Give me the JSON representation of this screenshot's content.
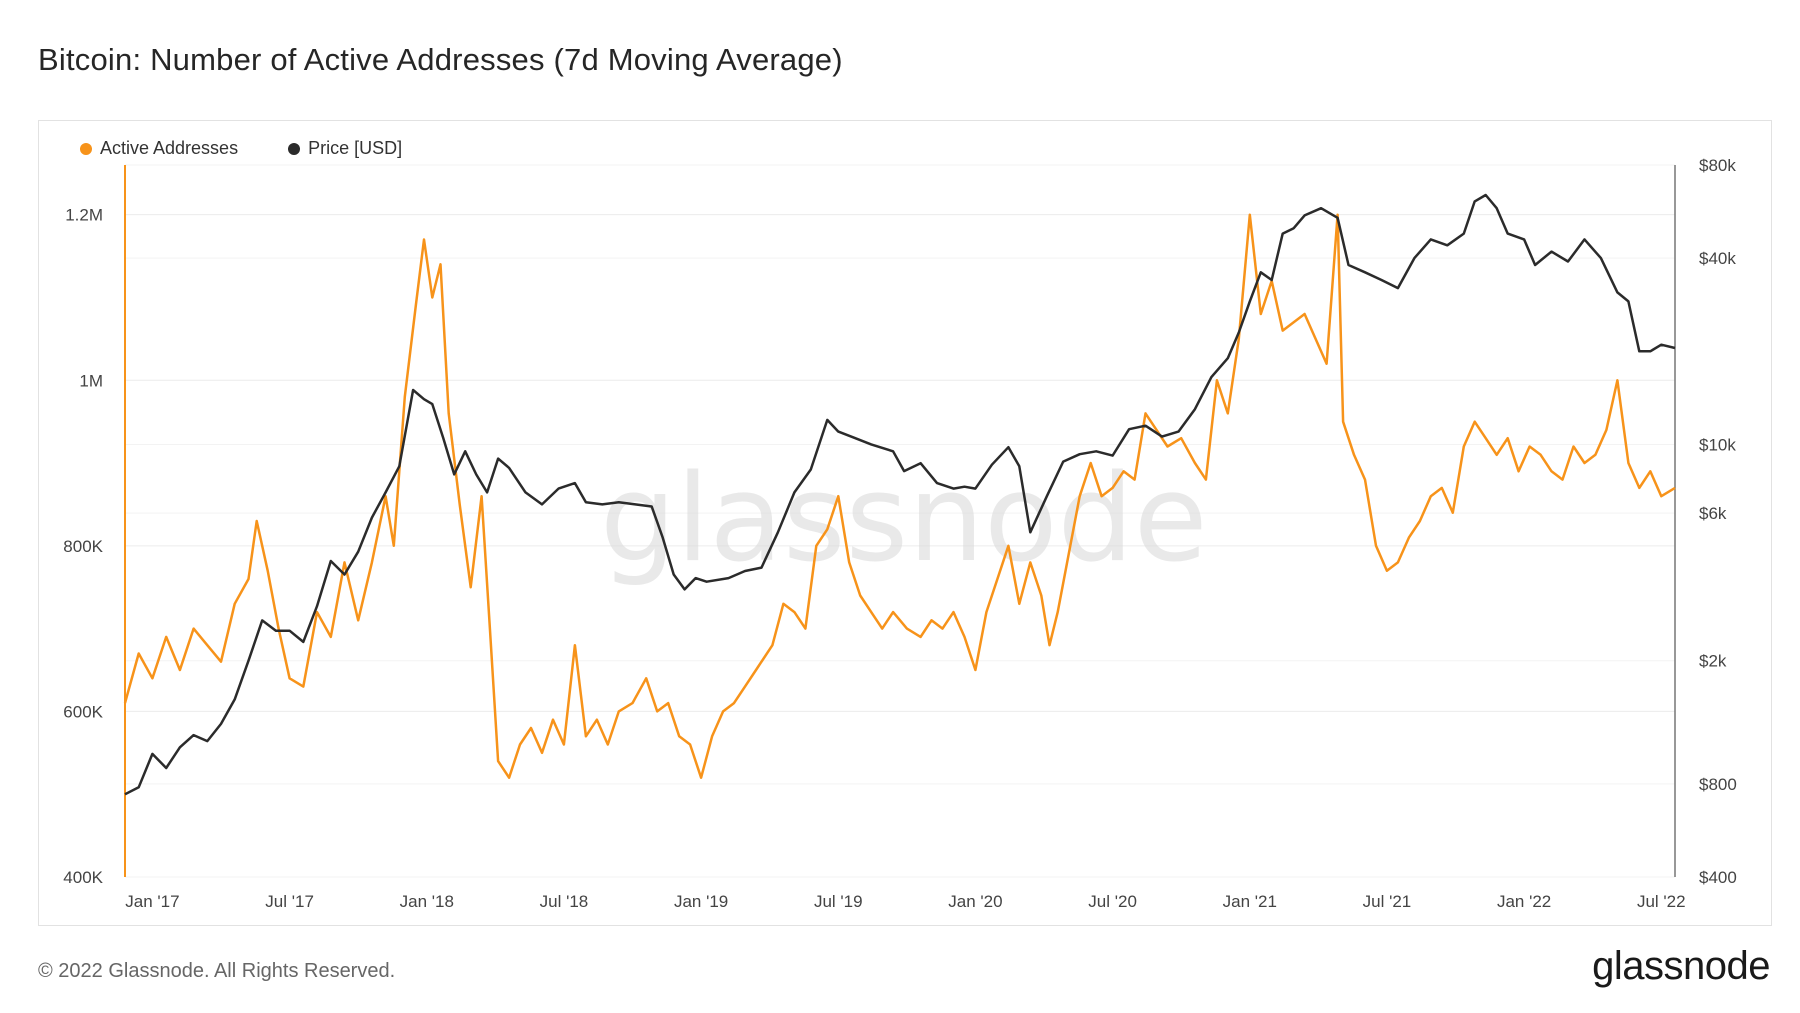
{
  "title": "Bitcoin: Number of Active Addresses (7d Moving Average)",
  "footer": {
    "copyright": "© 2022 Glassnode. All Rights Reserved.",
    "logo": "glassnode"
  },
  "watermark": "glassnode",
  "colors": {
    "active": "#f7931a",
    "price": "#2b2b2b",
    "grid": "#ececec"
  },
  "chart_data": {
    "type": "line",
    "title": "Bitcoin: Number of Active Addresses (7d Moving Average)",
    "x_ticks": [
      "Jan '17",
      "Jul '17",
      "Jan '18",
      "Jul '18",
      "Jan '19",
      "Jul '19",
      "Jan '20",
      "Jul '20",
      "Jan '21",
      "Jul '21",
      "Jan '22",
      "Jul '22"
    ],
    "y_left": {
      "label": "Active Addresses",
      "ticks": [
        "400K",
        "600K",
        "800K",
        "1M",
        "1.2M"
      ],
      "tick_values": [
        400000,
        600000,
        800000,
        1000000,
        1200000
      ],
      "range": [
        400000,
        1260000
      ]
    },
    "y_right": {
      "label": "Price [USD]",
      "scale": "log",
      "ticks": [
        "$400",
        "$800",
        "$2k",
        "$6k",
        "$10k",
        "$40k",
        "$80k"
      ],
      "tick_values": [
        400,
        800,
        2000,
        6000,
        10000,
        40000,
        80000
      ],
      "range": [
        400,
        80000
      ]
    },
    "legend": [
      "Active Addresses",
      "Price [USD]"
    ],
    "legend_position": "top-left",
    "x_start": 2016.9,
    "x_end": 2022.55,
    "series": [
      {
        "name": "Active Addresses",
        "color": "#f7931a",
        "points": [
          [
            2016.9,
            610000
          ],
          [
            2016.95,
            670000
          ],
          [
            2017.0,
            640000
          ],
          [
            2017.05,
            690000
          ],
          [
            2017.1,
            650000
          ],
          [
            2017.15,
            700000
          ],
          [
            2017.2,
            680000
          ],
          [
            2017.25,
            660000
          ],
          [
            2017.3,
            730000
          ],
          [
            2017.35,
            760000
          ],
          [
            2017.38,
            830000
          ],
          [
            2017.42,
            770000
          ],
          [
            2017.46,
            700000
          ],
          [
            2017.5,
            640000
          ],
          [
            2017.55,
            630000
          ],
          [
            2017.6,
            720000
          ],
          [
            2017.65,
            690000
          ],
          [
            2017.7,
            780000
          ],
          [
            2017.75,
            710000
          ],
          [
            2017.8,
            780000
          ],
          [
            2017.85,
            860000
          ],
          [
            2017.88,
            800000
          ],
          [
            2017.92,
            980000
          ],
          [
            2017.96,
            1090000
          ],
          [
            2017.99,
            1170000
          ],
          [
            2018.02,
            1100000
          ],
          [
            2018.05,
            1140000
          ],
          [
            2018.08,
            960000
          ],
          [
            2018.12,
            850000
          ],
          [
            2018.16,
            750000
          ],
          [
            2018.2,
            860000
          ],
          [
            2018.23,
            700000
          ],
          [
            2018.26,
            540000
          ],
          [
            2018.3,
            520000
          ],
          [
            2018.34,
            560000
          ],
          [
            2018.38,
            580000
          ],
          [
            2018.42,
            550000
          ],
          [
            2018.46,
            590000
          ],
          [
            2018.5,
            560000
          ],
          [
            2018.54,
            680000
          ],
          [
            2018.58,
            570000
          ],
          [
            2018.62,
            590000
          ],
          [
            2018.66,
            560000
          ],
          [
            2018.7,
            600000
          ],
          [
            2018.75,
            610000
          ],
          [
            2018.8,
            640000
          ],
          [
            2018.84,
            600000
          ],
          [
            2018.88,
            610000
          ],
          [
            2018.92,
            570000
          ],
          [
            2018.96,
            560000
          ],
          [
            2019.0,
            520000
          ],
          [
            2019.04,
            570000
          ],
          [
            2019.08,
            600000
          ],
          [
            2019.12,
            610000
          ],
          [
            2019.16,
            630000
          ],
          [
            2019.2,
            650000
          ],
          [
            2019.26,
            680000
          ],
          [
            2019.3,
            730000
          ],
          [
            2019.34,
            720000
          ],
          [
            2019.38,
            700000
          ],
          [
            2019.42,
            800000
          ],
          [
            2019.46,
            820000
          ],
          [
            2019.5,
            860000
          ],
          [
            2019.54,
            780000
          ],
          [
            2019.58,
            740000
          ],
          [
            2019.62,
            720000
          ],
          [
            2019.66,
            700000
          ],
          [
            2019.7,
            720000
          ],
          [
            2019.75,
            700000
          ],
          [
            2019.8,
            690000
          ],
          [
            2019.84,
            710000
          ],
          [
            2019.88,
            700000
          ],
          [
            2019.92,
            720000
          ],
          [
            2019.96,
            690000
          ],
          [
            2020.0,
            650000
          ],
          [
            2020.04,
            720000
          ],
          [
            2020.08,
            760000
          ],
          [
            2020.12,
            800000
          ],
          [
            2020.16,
            730000
          ],
          [
            2020.2,
            780000
          ],
          [
            2020.24,
            740000
          ],
          [
            2020.27,
            680000
          ],
          [
            2020.3,
            720000
          ],
          [
            2020.34,
            790000
          ],
          [
            2020.38,
            860000
          ],
          [
            2020.42,
            900000
          ],
          [
            2020.46,
            860000
          ],
          [
            2020.5,
            870000
          ],
          [
            2020.54,
            890000
          ],
          [
            2020.58,
            880000
          ],
          [
            2020.62,
            960000
          ],
          [
            2020.66,
            940000
          ],
          [
            2020.7,
            920000
          ],
          [
            2020.75,
            930000
          ],
          [
            2020.8,
            900000
          ],
          [
            2020.84,
            880000
          ],
          [
            2020.88,
            1000000
          ],
          [
            2020.92,
            960000
          ],
          [
            2020.96,
            1050000
          ],
          [
            2021.0,
            1200000
          ],
          [
            2021.04,
            1080000
          ],
          [
            2021.08,
            1120000
          ],
          [
            2021.12,
            1060000
          ],
          [
            2021.16,
            1070000
          ],
          [
            2021.2,
            1080000
          ],
          [
            2021.24,
            1050000
          ],
          [
            2021.28,
            1020000
          ],
          [
            2021.32,
            1200000
          ],
          [
            2021.34,
            950000
          ],
          [
            2021.38,
            910000
          ],
          [
            2021.42,
            880000
          ],
          [
            2021.46,
            800000
          ],
          [
            2021.5,
            770000
          ],
          [
            2021.54,
            780000
          ],
          [
            2021.58,
            810000
          ],
          [
            2021.62,
            830000
          ],
          [
            2021.66,
            860000
          ],
          [
            2021.7,
            870000
          ],
          [
            2021.74,
            840000
          ],
          [
            2021.78,
            920000
          ],
          [
            2021.82,
            950000
          ],
          [
            2021.86,
            930000
          ],
          [
            2021.9,
            910000
          ],
          [
            2021.94,
            930000
          ],
          [
            2021.98,
            890000
          ],
          [
            2022.02,
            920000
          ],
          [
            2022.06,
            910000
          ],
          [
            2022.1,
            890000
          ],
          [
            2022.14,
            880000
          ],
          [
            2022.18,
            920000
          ],
          [
            2022.22,
            900000
          ],
          [
            2022.26,
            910000
          ],
          [
            2022.3,
            940000
          ],
          [
            2022.34,
            1000000
          ],
          [
            2022.38,
            900000
          ],
          [
            2022.42,
            870000
          ],
          [
            2022.46,
            890000
          ],
          [
            2022.5,
            860000
          ],
          [
            2022.55,
            870000
          ]
        ]
      },
      {
        "name": "Price [USD]",
        "color": "#2b2b2b",
        "points": [
          [
            2016.9,
            740
          ],
          [
            2016.95,
            780
          ],
          [
            2017.0,
            1000
          ],
          [
            2017.05,
            900
          ],
          [
            2017.1,
            1050
          ],
          [
            2017.15,
            1150
          ],
          [
            2017.2,
            1100
          ],
          [
            2017.25,
            1250
          ],
          [
            2017.3,
            1500
          ],
          [
            2017.35,
            2000
          ],
          [
            2017.4,
            2700
          ],
          [
            2017.45,
            2500
          ],
          [
            2017.5,
            2500
          ],
          [
            2017.55,
            2300
          ],
          [
            2017.6,
            3000
          ],
          [
            2017.65,
            4200
          ],
          [
            2017.7,
            3800
          ],
          [
            2017.75,
            4500
          ],
          [
            2017.8,
            5800
          ],
          [
            2017.85,
            7000
          ],
          [
            2017.9,
            8500
          ],
          [
            2017.95,
            15000
          ],
          [
            2017.99,
            14000
          ],
          [
            2018.02,
            13500
          ],
          [
            2018.06,
            10500
          ],
          [
            2018.1,
            8000
          ],
          [
            2018.14,
            9500
          ],
          [
            2018.18,
            8000
          ],
          [
            2018.22,
            7000
          ],
          [
            2018.26,
            9000
          ],
          [
            2018.3,
            8400
          ],
          [
            2018.36,
            7000
          ],
          [
            2018.42,
            6400
          ],
          [
            2018.48,
            7200
          ],
          [
            2018.54,
            7500
          ],
          [
            2018.58,
            6500
          ],
          [
            2018.64,
            6400
          ],
          [
            2018.7,
            6500
          ],
          [
            2018.76,
            6400
          ],
          [
            2018.82,
            6300
          ],
          [
            2018.86,
            5000
          ],
          [
            2018.9,
            3800
          ],
          [
            2018.94,
            3400
          ],
          [
            2018.98,
            3700
          ],
          [
            2019.02,
            3600
          ],
          [
            2019.1,
            3700
          ],
          [
            2019.16,
            3900
          ],
          [
            2019.22,
            4000
          ],
          [
            2019.28,
            5200
          ],
          [
            2019.34,
            7000
          ],
          [
            2019.4,
            8300
          ],
          [
            2019.46,
            12000
          ],
          [
            2019.5,
            11000
          ],
          [
            2019.56,
            10500
          ],
          [
            2019.62,
            10000
          ],
          [
            2019.7,
            9500
          ],
          [
            2019.74,
            8200
          ],
          [
            2019.8,
            8700
          ],
          [
            2019.86,
            7500
          ],
          [
            2019.92,
            7200
          ],
          [
            2019.96,
            7300
          ],
          [
            2020.0,
            7200
          ],
          [
            2020.06,
            8600
          ],
          [
            2020.12,
            9800
          ],
          [
            2020.16,
            8500
          ],
          [
            2020.2,
            5200
          ],
          [
            2020.26,
            6800
          ],
          [
            2020.32,
            8800
          ],
          [
            2020.38,
            9300
          ],
          [
            2020.44,
            9500
          ],
          [
            2020.5,
            9200
          ],
          [
            2020.56,
            11200
          ],
          [
            2020.62,
            11500
          ],
          [
            2020.68,
            10600
          ],
          [
            2020.74,
            11000
          ],
          [
            2020.8,
            13000
          ],
          [
            2020.86,
            16500
          ],
          [
            2020.92,
            19000
          ],
          [
            2020.96,
            23000
          ],
          [
            2021.0,
            29000
          ],
          [
            2021.04,
            36000
          ],
          [
            2021.08,
            34000
          ],
          [
            2021.12,
            48000
          ],
          [
            2021.16,
            50000
          ],
          [
            2021.2,
            55000
          ],
          [
            2021.26,
            58000
          ],
          [
            2021.32,
            54000
          ],
          [
            2021.36,
            38000
          ],
          [
            2021.42,
            36000
          ],
          [
            2021.48,
            34000
          ],
          [
            2021.54,
            32000
          ],
          [
            2021.6,
            40000
          ],
          [
            2021.66,
            46000
          ],
          [
            2021.72,
            44000
          ],
          [
            2021.78,
            48000
          ],
          [
            2021.82,
            61000
          ],
          [
            2021.86,
            64000
          ],
          [
            2021.9,
            58000
          ],
          [
            2021.94,
            48000
          ],
          [
            2022.0,
            46000
          ],
          [
            2022.04,
            38000
          ],
          [
            2022.1,
            42000
          ],
          [
            2022.16,
            39000
          ],
          [
            2022.22,
            46000
          ],
          [
            2022.28,
            40000
          ],
          [
            2022.34,
            31000
          ],
          [
            2022.38,
            29000
          ],
          [
            2022.42,
            20000
          ],
          [
            2022.46,
            20000
          ],
          [
            2022.5,
            21000
          ],
          [
            2022.55,
            20500
          ]
        ]
      }
    ]
  }
}
